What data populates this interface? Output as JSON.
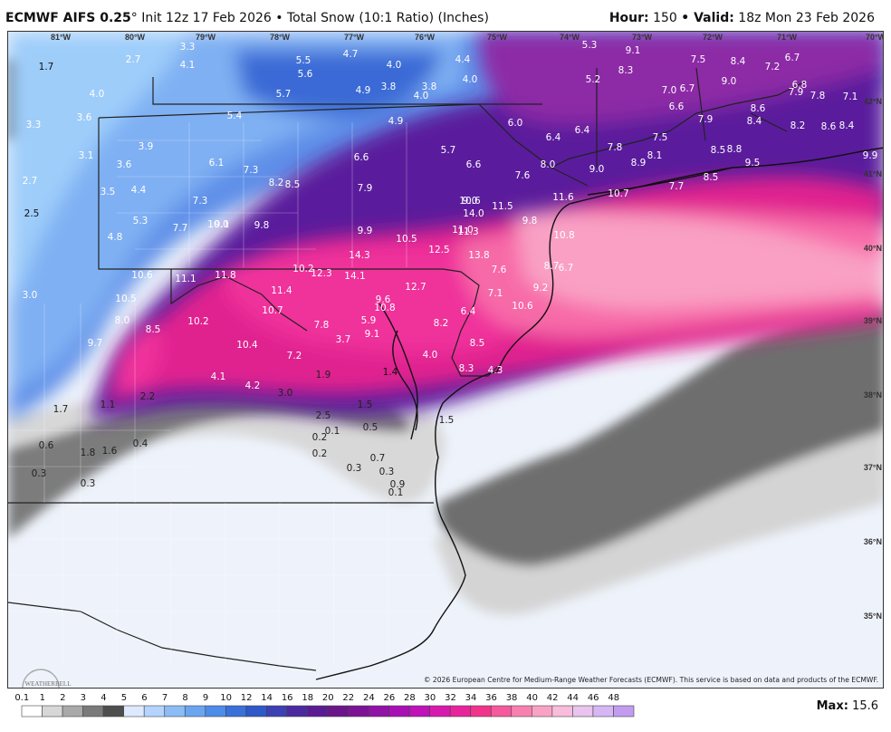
{
  "header": {
    "model": "ECMWF AIFS 0.25",
    "degree": "°",
    "init": " Init 12z 17 Feb 2026 • Total Snow (10:1 Ratio) (Inches)",
    "hour_label": "Hour:",
    "hour_value": "150",
    "valid_label": "• Valid:",
    "valid_value": "18z Mon 23 Feb 2026"
  },
  "lon_labels": [
    "81°W",
    "80°W",
    "79°W",
    "78°W",
    "77°W",
    "76°W",
    "75°W",
    "74°W",
    "73°W",
    "72°W",
    "71°W",
    "70°W"
  ],
  "lat_labels": [
    "42°N",
    "41°N",
    "40°N",
    "39°N",
    "38°N",
    "37°N",
    "36°N",
    "35°N"
  ],
  "snow_values": [
    "1.7",
    "2.7",
    "3.3",
    "4.1",
    "4.0",
    "3.6",
    "3.3",
    "3.8",
    "3.9",
    "3.1",
    "3.6",
    "2.7",
    "3.5",
    "4.4",
    "2.5",
    "5.3",
    "4.8",
    "3.0",
    "5.5",
    "5.6",
    "4.7",
    "4.0",
    "3.8",
    "4.4",
    "4.0",
    "5.7",
    "4.9",
    "4.0",
    "5.4",
    "4.9",
    "6.0",
    "5.3",
    "5.2",
    "6.4",
    "6.4",
    "9.1",
    "8.3",
    "7.5",
    "8.4",
    "7.2",
    "6.7",
    "6.8",
    "7.0",
    "6.7",
    "9.0",
    "7.9",
    "7.8",
    "7.1",
    "6.6",
    "7.9",
    "8.6",
    "8.4",
    "8.2",
    "8.6",
    "8.4",
    "7.5",
    "8.8",
    "7.8",
    "8.1",
    "8.9",
    "8.5",
    "9.5",
    "9.9",
    "6.1",
    "7.3",
    "6.6",
    "5.7",
    "6.6",
    "7.6",
    "8.0",
    "9.0",
    "8.2",
    "8.5",
    "7.9",
    "7.3",
    "7.7",
    "9.1",
    "10.6",
    "11.5",
    "11.6",
    "10.7",
    "7.7",
    "8.5",
    "9.0",
    "10.0",
    "9.8",
    "9.9",
    "10.5",
    "11.0",
    "14.0",
    "9.8",
    "10.8",
    "11.3",
    "12.5",
    "14.3",
    "13.8",
    "7.6",
    "8.7",
    "6.7",
    "10.6",
    "11.1",
    "11.8",
    "10.2",
    "12.3",
    "14.1",
    "12.7",
    "7.1",
    "9.2",
    "10.6",
    "10.5",
    "11.4",
    "9.6",
    "10.8",
    "6.4",
    "8.0",
    "8.5",
    "10.2",
    "10.7",
    "7.8",
    "5.9",
    "8.2",
    "9.7",
    "10.4",
    "3.7",
    "9.1",
    "8.5",
    "7.2",
    "4.0",
    "8.3",
    "4.3",
    "1.9",
    "1.4",
    "1.5",
    "4.1",
    "4.2",
    "3.0",
    "1.5",
    "1.7",
    "1.1",
    "2.2",
    "2.5",
    "0.1",
    "0.5",
    "0.6",
    "0.4",
    "0.2",
    "1.8",
    "1.6",
    "0.2",
    "0.7",
    "0.3",
    "0.3",
    "0.3",
    "0.9",
    "0.3",
    "0.1"
  ],
  "legend": {
    "labels": [
      "0.1",
      "1",
      "2",
      "3",
      "4",
      "5",
      "6",
      "7",
      "8",
      "9",
      "10",
      "12",
      "14",
      "16",
      "18",
      "20",
      "22",
      "24",
      "26",
      "28",
      "30",
      "32",
      "34",
      "36",
      "38",
      "40",
      "42",
      "44",
      "46",
      "48"
    ],
    "colors": [
      "#ffffff",
      "#d7d7d7",
      "#a9a9a9",
      "#7a7a7a",
      "#4e4e4e",
      "#dde9ff",
      "#b4d4ff",
      "#8cbcf5",
      "#6aa5ef",
      "#4d8ce8",
      "#3a70da",
      "#2f58c9",
      "#3d3fb5",
      "#4b2aa0",
      "#5a1c93",
      "#6b158a",
      "#7d1296",
      "#9012a6",
      "#a70fb5",
      "#bf12b9",
      "#d61aaf",
      "#e8249c",
      "#f2338c",
      "#f55a9c",
      "#f880b0",
      "#f9a2c5",
      "#f7bddb",
      "#e9c4ee",
      "#d7b6f4",
      "#c39cf0"
    ]
  },
  "credit": "© 2026 European Centre for Medium-Range Weather Forecasts (ECMWF). This service is based on data and products of the ECMWF.",
  "logo_text": "WEATHERBELL",
  "max_label": "Max:",
  "max_value": "15.6"
}
